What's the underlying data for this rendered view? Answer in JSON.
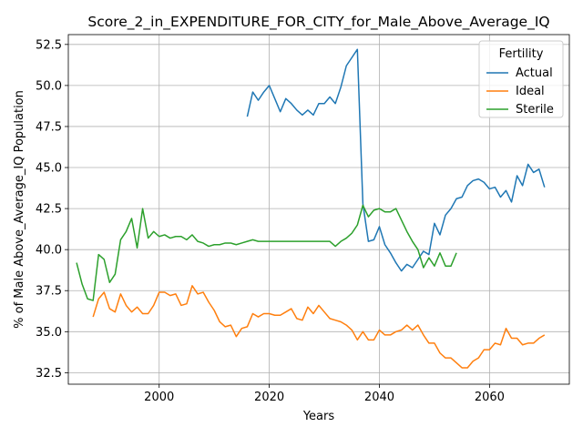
{
  "chart_data": {
    "type": "line",
    "title": "Score_2_in_EXPENDITURE_FOR_CITY_for_Male_Above_Average_IQ",
    "xlabel": "Years",
    "ylabel": "% of Male Above_Average_IQ Population",
    "xlim": [
      1983.5,
      2074.5
    ],
    "ylim": [
      31.8,
      53.1
    ],
    "x_ticks": [
      2000,
      2020,
      2040,
      2060
    ],
    "x_tick_labels": [
      "2000",
      "2020",
      "2040",
      "2060"
    ],
    "y_ticks": [
      32.5,
      35.0,
      37.5,
      40.0,
      42.5,
      45.0,
      47.5,
      50.0,
      52.5
    ],
    "y_tick_labels": [
      "32.5",
      "35.0",
      "37.5",
      "40.0",
      "42.5",
      "45.0",
      "47.5",
      "50.0",
      "52.5"
    ],
    "grid": true,
    "legend": {
      "title": "Fertility",
      "placement": "top-right"
    },
    "series": [
      {
        "name": "Actual",
        "color": "#1f77b4",
        "x": [
          2016,
          2017,
          2018,
          2019,
          2020,
          2021,
          2022,
          2023,
          2024,
          2025,
          2026,
          2027,
          2028,
          2029,
          2030,
          2031,
          2032,
          2033,
          2034,
          2035,
          2036,
          2037,
          2038,
          2039,
          2040,
          2041,
          2042,
          2043,
          2044,
          2045,
          2046,
          2047,
          2048,
          2049,
          2050,
          2051,
          2052,
          2053,
          2054,
          2055,
          2056,
          2057,
          2058,
          2059,
          2060,
          2061,
          2062,
          2063,
          2064,
          2065,
          2066,
          2067,
          2068,
          2069,
          2070
        ],
        "y": [
          48.1,
          49.6,
          49.1,
          49.6,
          50.0,
          49.2,
          48.4,
          49.2,
          48.9,
          48.5,
          48.2,
          48.5,
          48.2,
          48.9,
          48.9,
          49.3,
          48.9,
          49.9,
          51.2,
          51.7,
          52.2,
          42.8,
          40.5,
          40.6,
          41.4,
          40.3,
          39.8,
          39.2,
          38.7,
          39.1,
          38.9,
          39.4,
          39.9,
          39.7,
          41.6,
          40.9,
          42.1,
          42.5,
          43.1,
          43.2,
          43.9,
          44.2,
          44.3,
          44.1,
          43.7,
          43.8,
          43.2,
          43.6,
          42.9,
          44.5,
          43.9,
          45.2,
          44.7,
          44.9,
          43.8
        ]
      },
      {
        "name": "Ideal",
        "color": "#ff7f0e",
        "x": [
          1988,
          1989,
          1990,
          1991,
          1992,
          1993,
          1994,
          1995,
          1996,
          1997,
          1998,
          1999,
          2000,
          2001,
          2002,
          2003,
          2004,
          2005,
          2006,
          2007,
          2008,
          2009,
          2010,
          2011,
          2012,
          2013,
          2014,
          2015,
          2016,
          2017,
          2018,
          2019,
          2020,
          2021,
          2022,
          2023,
          2024,
          2025,
          2026,
          2027,
          2028,
          2029,
          2030,
          2031,
          2032,
          2033,
          2034,
          2035,
          2036,
          2037,
          2038,
          2039,
          2040,
          2041,
          2042,
          2043,
          2044,
          2045,
          2046,
          2047,
          2048,
          2049,
          2050,
          2051,
          2052,
          2053,
          2054,
          2055,
          2056,
          2057,
          2058,
          2059,
          2060,
          2061,
          2062,
          2063,
          2064,
          2065,
          2066,
          2067,
          2068,
          2069,
          2070
        ],
        "y": [
          35.9,
          37.0,
          37.4,
          36.4,
          36.2,
          37.3,
          36.6,
          36.2,
          36.5,
          36.1,
          36.1,
          36.6,
          37.4,
          37.4,
          37.2,
          37.3,
          36.6,
          36.7,
          37.8,
          37.3,
          37.4,
          36.8,
          36.3,
          35.6,
          35.3,
          35.4,
          34.7,
          35.2,
          35.3,
          36.1,
          35.9,
          36.1,
          36.1,
          36.0,
          36.0,
          36.2,
          36.4,
          35.8,
          35.7,
          36.5,
          36.1,
          36.6,
          36.2,
          35.8,
          35.7,
          35.6,
          35.4,
          35.1,
          34.5,
          35.0,
          34.5,
          34.5,
          35.1,
          34.8,
          34.8,
          35.0,
          35.1,
          35.4,
          35.1,
          35.4,
          34.8,
          34.3,
          34.3,
          33.7,
          33.4,
          33.4,
          33.1,
          32.8,
          32.8,
          33.2,
          33.4,
          33.9,
          33.9,
          34.3,
          34.2,
          35.2,
          34.6,
          34.6,
          34.2,
          34.3,
          34.3,
          34.6,
          34.8
        ]
      },
      {
        "name": "Sterile",
        "color": "#2ca02c",
        "x": [
          1985,
          1986,
          1987,
          1988,
          1989,
          1990,
          1991,
          1992,
          1993,
          1994,
          1995,
          1996,
          1997,
          1998,
          1999,
          2000,
          2001,
          2002,
          2003,
          2004,
          2005,
          2006,
          2007,
          2008,
          2009,
          2010,
          2011,
          2012,
          2013,
          2014,
          2015,
          2016,
          2017,
          2018,
          2019,
          2020,
          2021,
          2022,
          2023,
          2024,
          2025,
          2026,
          2027,
          2028,
          2029,
          2030,
          2031,
          2032,
          2033,
          2034,
          2035,
          2036,
          2037,
          2038,
          2039,
          2040,
          2041,
          2042,
          2043,
          2044,
          2045,
          2046,
          2047,
          2048,
          2049,
          2050,
          2051,
          2052,
          2053,
          2054
        ],
        "y": [
          39.2,
          37.9,
          37.0,
          36.9,
          39.7,
          39.4,
          38.0,
          38.5,
          40.6,
          41.1,
          41.9,
          40.1,
          42.5,
          40.7,
          41.1,
          40.8,
          40.9,
          40.7,
          40.8,
          40.8,
          40.6,
          40.9,
          40.5,
          40.4,
          40.2,
          40.3,
          40.3,
          40.4,
          40.4,
          40.3,
          40.4,
          40.5,
          40.6,
          40.5,
          40.5,
          40.5,
          40.5,
          40.5,
          40.5,
          40.5,
          40.5,
          40.5,
          40.5,
          40.5,
          40.5,
          40.5,
          40.5,
          40.2,
          40.5,
          40.7,
          41.0,
          41.5,
          42.7,
          42.0,
          42.4,
          42.5,
          42.3,
          42.3,
          42.5,
          41.8,
          41.1,
          40.5,
          40.0,
          38.9,
          39.5,
          39.0,
          39.8,
          39.0,
          39.0,
          39.8
        ]
      }
    ]
  }
}
